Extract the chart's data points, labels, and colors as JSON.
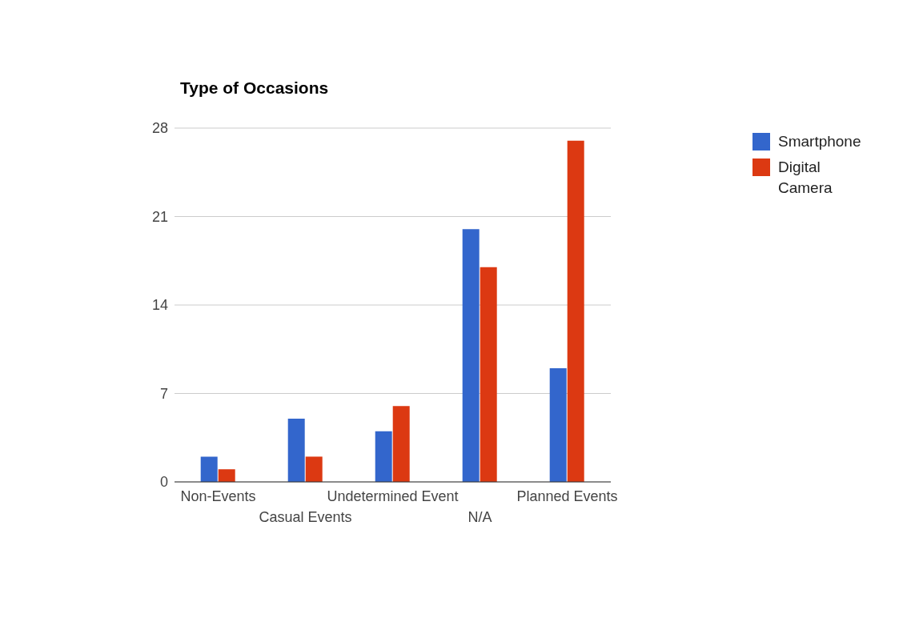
{
  "chart_data": {
    "type": "bar",
    "title": "Type of Occasions",
    "categories": [
      "Non-Events",
      "Casual Events",
      "Undetermined Event",
      "N/A",
      "Planned Events"
    ],
    "series": [
      {
        "name": "Smartphone",
        "color": "#3366cc",
        "values": [
          2,
          5,
          4,
          20,
          9
        ]
      },
      {
        "name": "Digital Camera",
        "color": "#dc3912",
        "values": [
          1,
          2,
          6,
          17,
          27
        ]
      }
    ],
    "ylim": [
      0,
      28
    ],
    "yticks": [
      0,
      7,
      14,
      21,
      28
    ],
    "grid": "y",
    "legend": "top right"
  }
}
